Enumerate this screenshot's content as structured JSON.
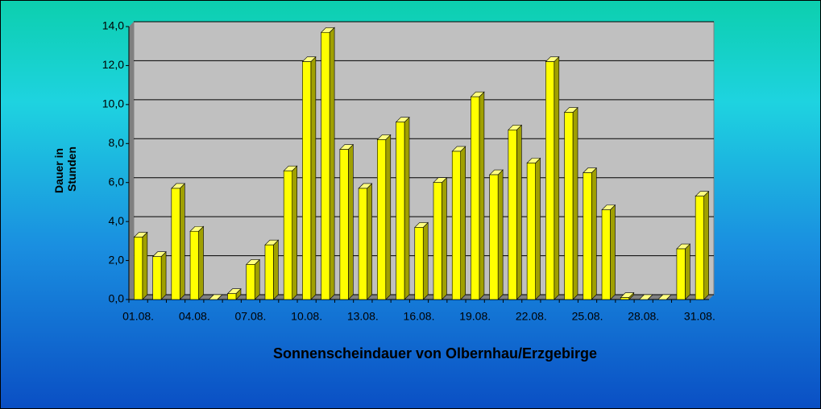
{
  "chart_data": {
    "type": "bar",
    "title": "Sonnenscheindauer von Olbernhau/Erzgebirge",
    "y_label_lines": [
      "Dauer in",
      "Stunden"
    ],
    "categories": [
      "01.08.",
      null,
      null,
      "04.08.",
      null,
      null,
      "07.08.",
      null,
      null,
      "10.08.",
      null,
      null,
      "13.08.",
      null,
      null,
      "16.08.",
      null,
      null,
      "19.08.",
      null,
      null,
      "22.08.",
      null,
      null,
      "25.08.",
      null,
      null,
      "28.08.",
      null,
      null,
      "31.08."
    ],
    "values": [
      3.2,
      2.2,
      5.7,
      3.5,
      0,
      0.3,
      1.8,
      2.8,
      6.6,
      12.2,
      13.7,
      7.7,
      5.7,
      8.2,
      9.1,
      3.7,
      6.0,
      7.6,
      10.4,
      6.4,
      8.7,
      7.0,
      12.2,
      9.6,
      6.5,
      4.6,
      0.1,
      0,
      0,
      2.6,
      5.3
    ],
    "color": "#ffff00",
    "ylim": [
      0,
      14
    ],
    "yticks": [
      {
        "value": 0,
        "label": "0,0"
      },
      {
        "value": 2,
        "label": "2,0"
      },
      {
        "value": 4,
        "label": "4,0"
      },
      {
        "value": 6,
        "label": "6,0"
      },
      {
        "value": 8,
        "label": "8,0"
      },
      {
        "value": 10,
        "label": "10,0"
      },
      {
        "value": 12,
        "label": "12,0"
      },
      {
        "value": 14,
        "label": "14,0"
      }
    ],
    "grid": true
  }
}
